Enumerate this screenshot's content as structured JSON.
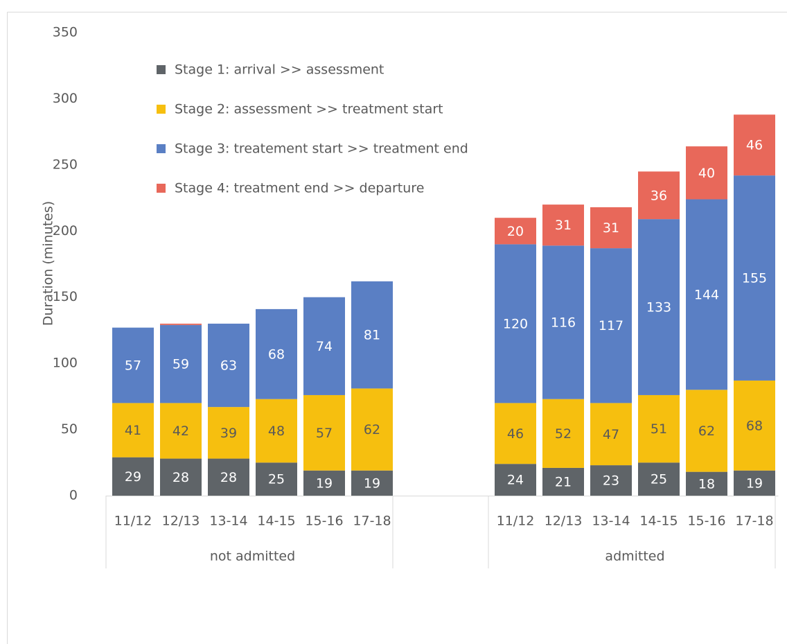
{
  "chart_data": {
    "type": "stacked-bar",
    "y_label": "Duration  (minutes)",
    "categories": [
      "11/12",
      "12/13",
      "13-14",
      "14-15",
      "15-16",
      "17-18",
      null,
      null,
      "11/12",
      "12/13",
      "13-14",
      "14-15",
      "15-16",
      "17-18"
    ],
    "groups": [
      "not admitted",
      "admitted"
    ],
    "series": [
      {
        "name": "Stage 1: arrival >> assessment",
        "color": "#5f6468",
        "label_color": "#ffffff",
        "values": [
          29,
          28,
          28,
          25,
          19,
          19,
          null,
          null,
          24,
          21,
          23,
          25,
          18,
          19
        ]
      },
      {
        "name": "Stage 2: assessment >> treatment start",
        "color": "#f6bf0f",
        "label_color": "#595959",
        "values": [
          41,
          42,
          39,
          48,
          57,
          62,
          null,
          null,
          46,
          52,
          47,
          51,
          62,
          68
        ]
      },
      {
        "name": "Stage 3: treatement start >> treatment end",
        "color": "#5a7fc4",
        "label_color": "#ffffff",
        "values": [
          57,
          59,
          63,
          68,
          74,
          81,
          null,
          null,
          120,
          116,
          117,
          133,
          144,
          155
        ]
      },
      {
        "name": "Stage 4: treatment end >> departure",
        "color": "#e8685a",
        "label_color": "#ffffff",
        "values": [
          0,
          1,
          0,
          0,
          0,
          0,
          null,
          null,
          20,
          31,
          31,
          36,
          40,
          46
        ]
      }
    ],
    "ylim": [
      0,
      350
    ],
    "yticks": [
      0,
      50,
      100,
      150,
      200,
      250,
      300,
      350
    ],
    "legend": "upper left"
  }
}
